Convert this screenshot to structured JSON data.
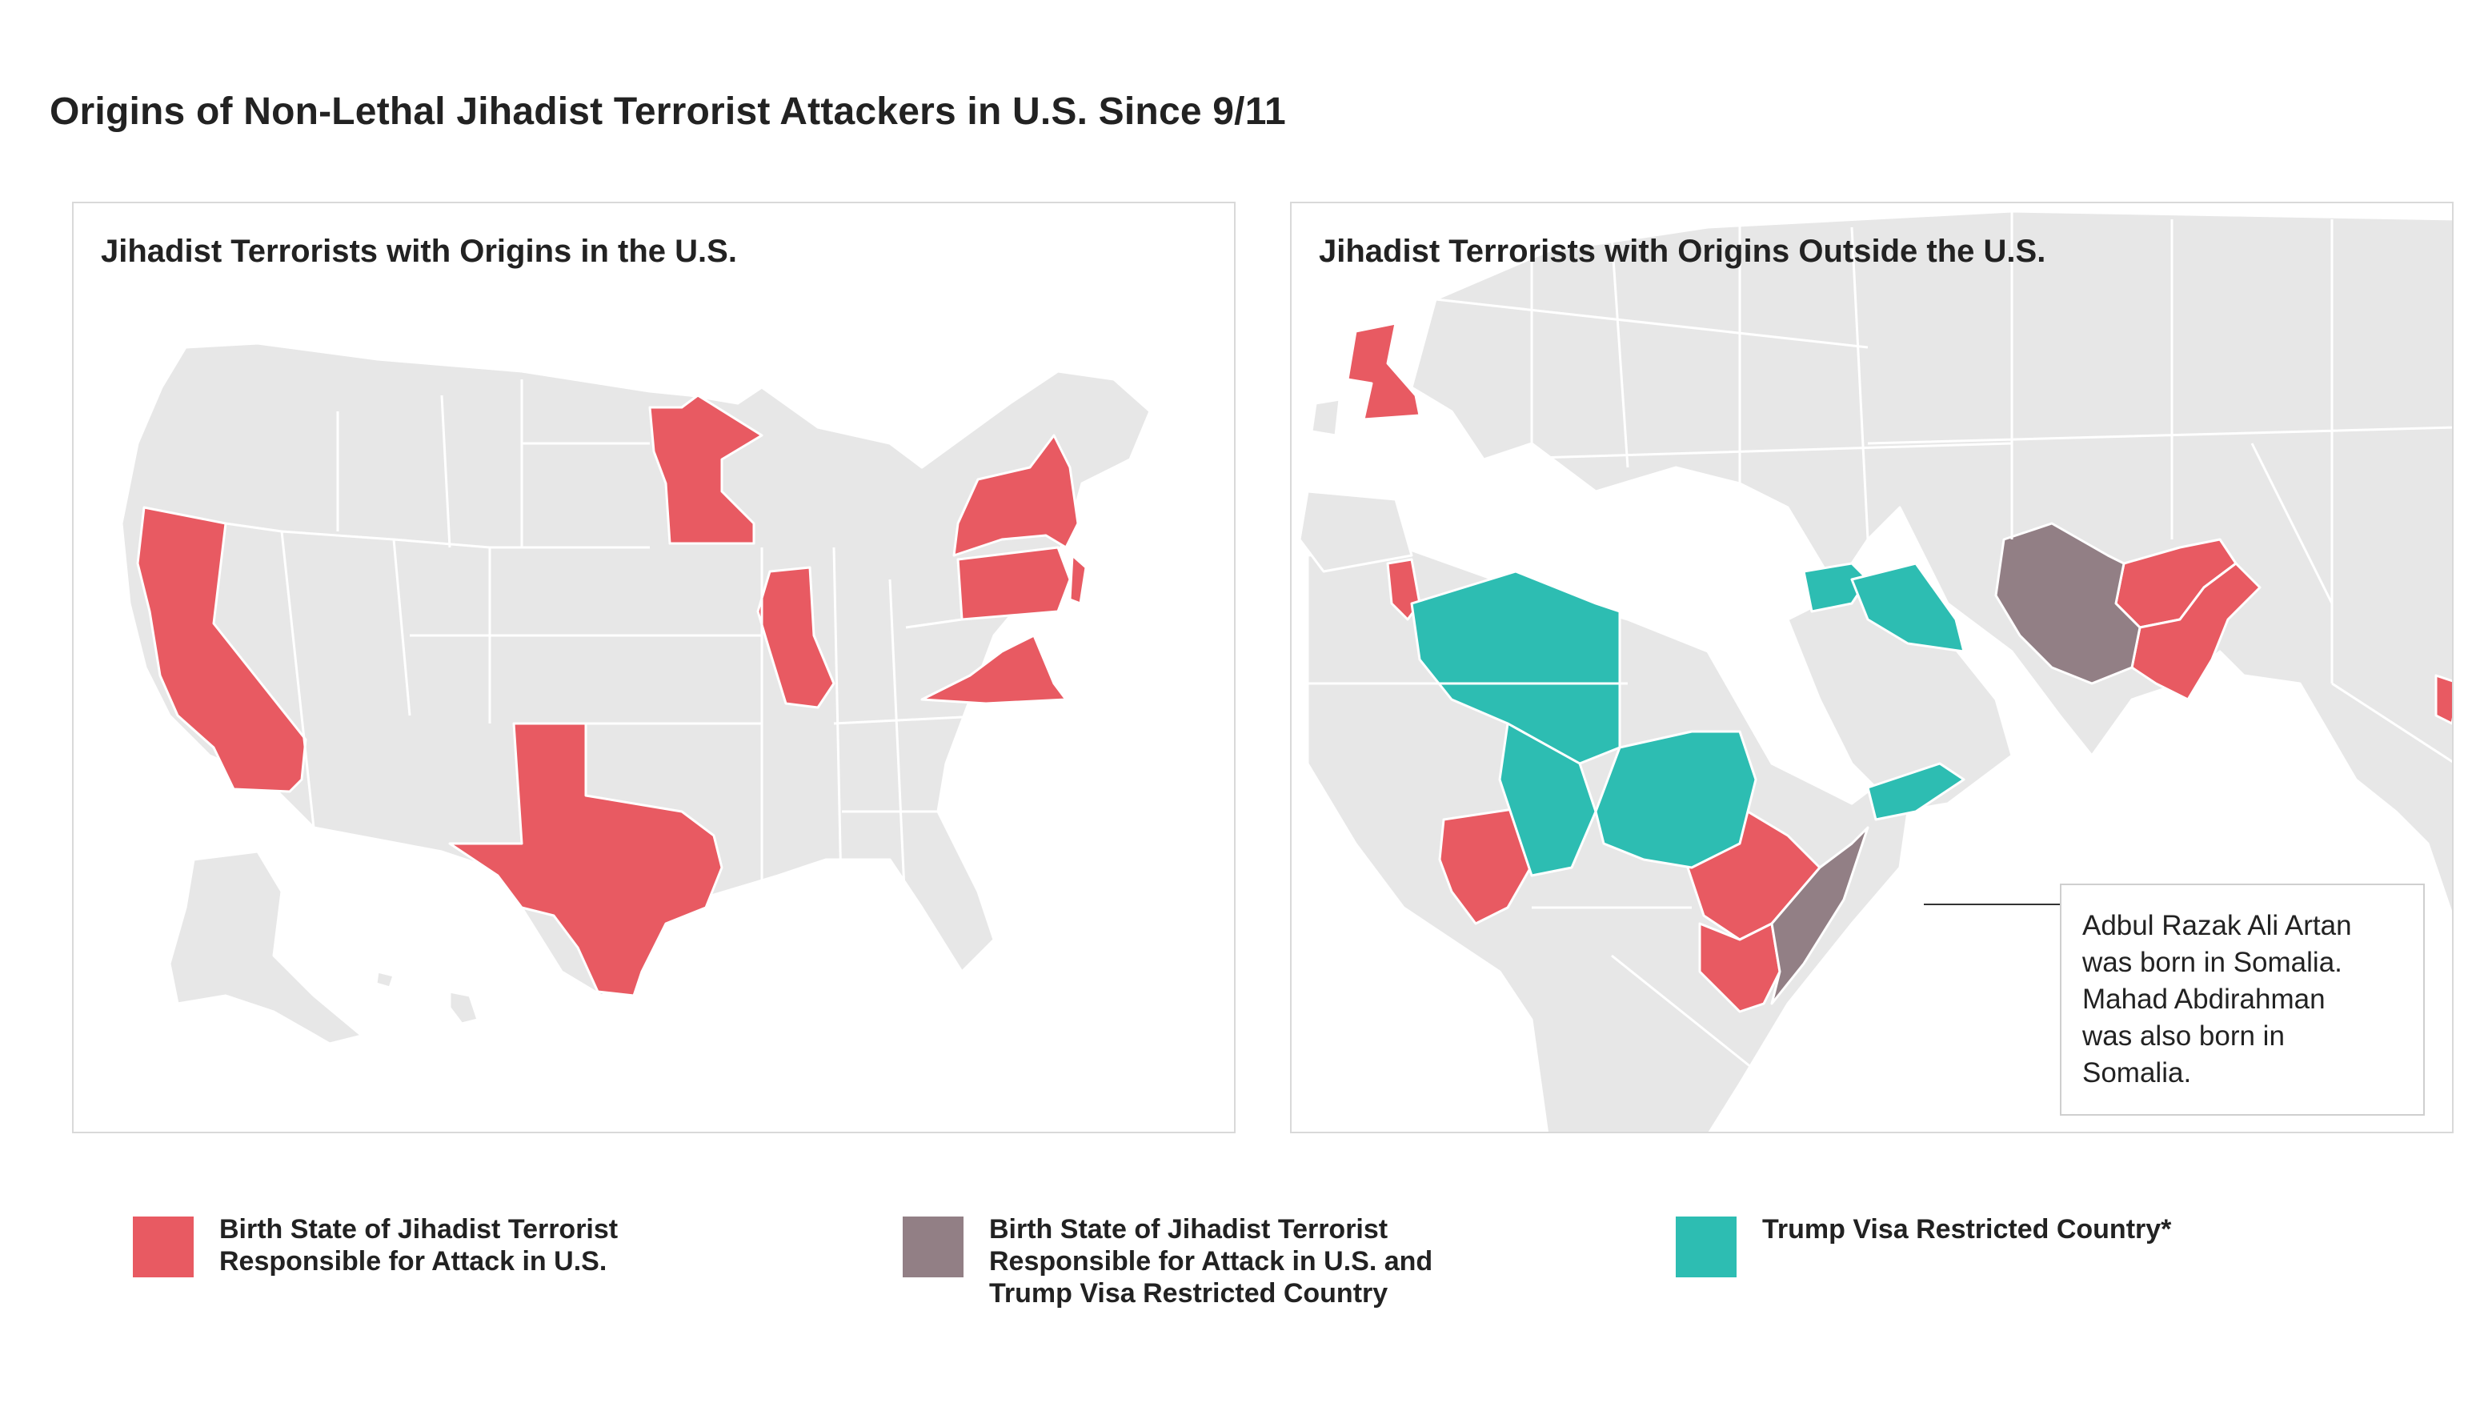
{
  "title": "Origins of Non-Lethal Jihadist Terrorist Attackers in U.S. Since 9/11",
  "colors": {
    "attack": "#e85a62",
    "both": "#927f85",
    "restricted": "#2dbdb2",
    "land": "#e7e7e7",
    "border": "#ffffff",
    "panel_border": "#d9d9d9"
  },
  "left_panel": {
    "title": "Jihadist Terrorists with Origins in the U.S.",
    "highlighted_states": [
      "California",
      "Minnesota",
      "Illinois",
      "Texas",
      "New York",
      "Pennsylvania",
      "Virginia",
      "New Jersey"
    ]
  },
  "right_panel": {
    "title": "Jihadist Terrorists with Origins Outside the U.S.",
    "attack_countries": [
      "United Kingdom",
      "Tunisia",
      "Nigeria",
      "Ethiopia",
      "Kenya",
      "Afghanistan",
      "Pakistan",
      "Bangladesh"
    ],
    "both_countries": [
      "Iran",
      "Somalia"
    ],
    "restricted_countries": [
      "Libya",
      "Chad",
      "Sudan",
      "Syria",
      "Iraq",
      "Yemen"
    ],
    "callout": {
      "lines": [
        "Adbul Razak Ali Artan",
        "was born in Somalia.",
        "Mahad Abdirahman",
        "was also born in",
        "Somalia."
      ]
    }
  },
  "legend": [
    {
      "lines": [
        "Birth State of Jihadist Terrorist",
        "Responsible for Attack in U.S."
      ],
      "color": "#e85a62"
    },
    {
      "lines": [
        "Birth State of Jihadist Terrorist",
        "Responsible for Attack in U.S. and",
        "Trump Visa Restricted Country"
      ],
      "color": "#927f85"
    },
    {
      "lines": [
        "Trump Visa Restricted Country*"
      ],
      "color": "#2dbdb2"
    }
  ]
}
